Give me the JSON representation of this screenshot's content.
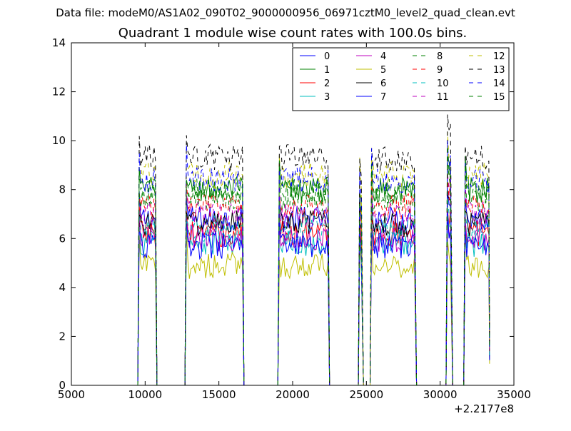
{
  "suptitle": "Data file: modeM0/AS1A02_090T02_9000000956_06971cztM0_level2_quad_clean.evt",
  "chart_data": {
    "type": "line",
    "title": "Quadrant 1 module wise count rates with 100.0s bins.",
    "xlabel": "",
    "ylabel": "",
    "x_offset_label": "+2.2177e8",
    "xlim": [
      5000,
      35000
    ],
    "ylim": [
      0,
      14
    ],
    "xticks": [
      "5000",
      "10000",
      "15000",
      "20000",
      "25000",
      "30000",
      "35000"
    ],
    "yticks": [
      "0",
      "2",
      "4",
      "6",
      "8",
      "10",
      "12",
      "14"
    ],
    "grid": false,
    "legend_position": "top-right",
    "legend_columns": 4,
    "segments": [
      {
        "start": 9600,
        "end": 10700,
        "level": 1.0
      },
      {
        "start": 12800,
        "end": 16600,
        "level": 1.0
      },
      {
        "start": 19100,
        "end": 22400,
        "level": 1.0
      },
      {
        "start": 24550,
        "end": 24700,
        "level": 0.92
      },
      {
        "start": 25350,
        "end": 28300,
        "level": 1.0
      },
      {
        "start": 30500,
        "end": 30750,
        "level": 1.1
      },
      {
        "start": 31700,
        "end": 33350,
        "level": 1.0
      }
    ],
    "series": [
      {
        "name": "0",
        "color": "#0000ff",
        "dash": "solid",
        "level": 6.8
      },
      {
        "name": "1",
        "color": "#008000",
        "dash": "solid",
        "level": 8.0
      },
      {
        "name": "2",
        "color": "#ff0000",
        "dash": "solid",
        "level": 6.2
      },
      {
        "name": "3",
        "color": "#00bfbf",
        "dash": "solid",
        "level": 5.8
      },
      {
        "name": "4",
        "color": "#bf00bf",
        "dash": "solid",
        "level": 6.0
      },
      {
        "name": "5",
        "color": "#bfbf00",
        "dash": "solid",
        "level": 4.9
      },
      {
        "name": "6",
        "color": "#000000",
        "dash": "solid",
        "level": 6.6
      },
      {
        "name": "7",
        "color": "#0000ff",
        "dash": "solid",
        "level": 5.7
      },
      {
        "name": "8",
        "color": "#008000",
        "dash": "dashed",
        "level": 7.6
      },
      {
        "name": "9",
        "color": "#ff0000",
        "dash": "dashed",
        "level": 7.3
      },
      {
        "name": "10",
        "color": "#00bfbf",
        "dash": "dashed",
        "level": 6.4
      },
      {
        "name": "11",
        "color": "#bf00bf",
        "dash": "dashed",
        "level": 7.0
      },
      {
        "name": "12",
        "color": "#bfbf00",
        "dash": "dashed",
        "level": 8.6
      },
      {
        "name": "13",
        "color": "#000000",
        "dash": "dashed",
        "level": 9.3
      },
      {
        "name": "14",
        "color": "#0000ff",
        "dash": "dashed",
        "level": 8.4
      },
      {
        "name": "15",
        "color": "#008000",
        "dash": "dashed",
        "level": 7.9
      }
    ]
  }
}
